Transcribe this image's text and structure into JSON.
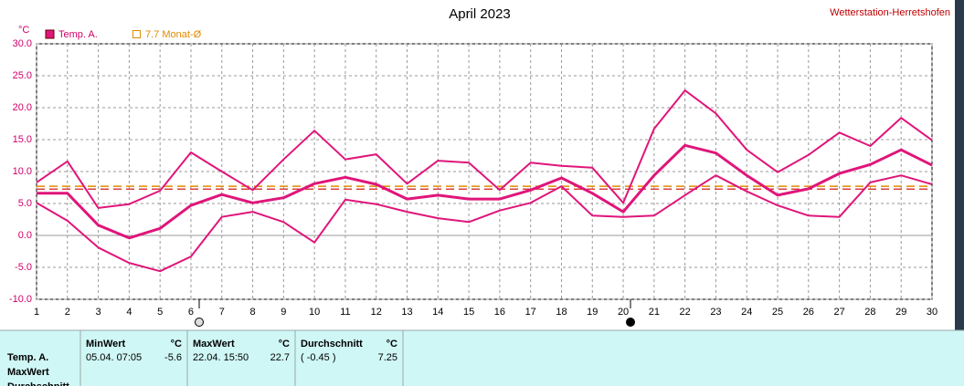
{
  "chart_data": {
    "type": "line",
    "title": "April 2023",
    "station": "Wetterstation-Herretshofen",
    "y_unit": "°C",
    "x": [
      1,
      2,
      3,
      4,
      5,
      6,
      7,
      8,
      9,
      10,
      11,
      12,
      13,
      14,
      15,
      16,
      17,
      18,
      19,
      20,
      21,
      22,
      23,
      24,
      25,
      26,
      27,
      28,
      29,
      30
    ],
    "xlim": [
      1,
      30
    ],
    "xticks": [
      1,
      2,
      3,
      4,
      5,
      6,
      7,
      8,
      9,
      10,
      11,
      12,
      13,
      14,
      15,
      16,
      17,
      18,
      19,
      20,
      21,
      22,
      23,
      24,
      25,
      26,
      27,
      28,
      29,
      30
    ],
    "ylim": [
      -10,
      30
    ],
    "yticks": [
      {
        "value": -10,
        "label": "-10.0"
      },
      {
        "value": -5,
        "label": "-5.0"
      },
      {
        "value": 0,
        "label": "0.0"
      },
      {
        "value": 5,
        "label": "5.0"
      },
      {
        "value": 10,
        "label": "10.0"
      },
      {
        "value": 15,
        "label": "15.0"
      },
      {
        "value": 20,
        "label": "20.0"
      },
      {
        "value": 25,
        "label": "25.0"
      },
      {
        "value": 30,
        "label": "30.0"
      }
    ],
    "grid": true,
    "series": [
      {
        "name": "Temp. A.",
        "color": "#e0157a",
        "values": [
          6.6,
          6.6,
          1.6,
          -0.4,
          1.1,
          4.7,
          6.4,
          5.1,
          5.9,
          8.1,
          9.1,
          8.0,
          5.7,
          6.3,
          5.7,
          5.7,
          7.1,
          9.0,
          6.6,
          3.7,
          9.4,
          14.1,
          12.9,
          9.4,
          6.3,
          7.3,
          9.7,
          11.1,
          13.4,
          11.0
        ],
        "max_values": [
          8.3,
          11.6,
          4.3,
          4.9,
          7.0,
          13.0,
          10.0,
          7.1,
          11.9,
          16.4,
          11.9,
          12.7,
          8.1,
          11.7,
          11.4,
          7.1,
          11.4,
          10.9,
          10.6,
          5.1,
          16.7,
          22.7,
          19.1,
          13.4,
          9.9,
          12.6,
          16.1,
          14.0,
          18.4,
          14.9
        ],
        "min_values": [
          5.1,
          2.3,
          -1.9,
          -4.3,
          -5.6,
          -3.3,
          2.9,
          3.7,
          2.1,
          -1.1,
          5.6,
          4.9,
          3.7,
          2.7,
          2.1,
          3.9,
          5.1,
          7.7,
          3.1,
          2.9,
          3.1,
          6.3,
          9.4,
          6.9,
          4.7,
          3.1,
          2.9,
          8.3,
          9.4,
          8.0
        ]
      }
    ],
    "reference_lines": [
      {
        "value": 7.7,
        "label": "7.7 Monat-Ø",
        "color": "#e08a00"
      },
      {
        "value": 7.25,
        "color": "#d84040"
      }
    ]
  },
  "table": {
    "header": [
      "MinWert",
      "°C",
      "MaxWert",
      "°C",
      "Durchschnitt",
      "°C"
    ],
    "row_labels": [
      "Temp. A.",
      "MaxWert",
      "Durchschnitt"
    ],
    "rows": [
      [
        "05.04.  07:05",
        "-5.6",
        "22.04.  15:50",
        "22.7",
        "( -0.45 )",
        "7.25"
      ]
    ]
  }
}
